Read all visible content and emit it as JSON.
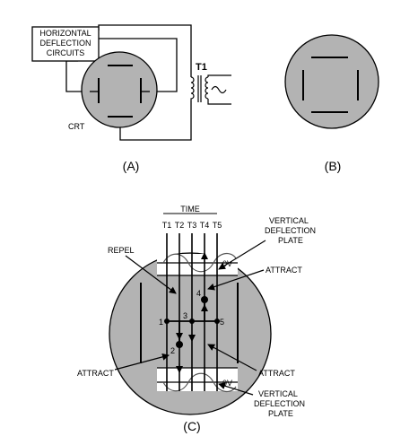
{
  "panel_a": {
    "box_line1": "HORIZONTAL",
    "box_line2": "DEFLECTION",
    "box_line3": "CIRCUITS",
    "transformer_label": "T1",
    "tube_label": "CRT",
    "caption": "(A)"
  },
  "panel_b": {
    "caption": "(B)"
  },
  "panel_c": {
    "time_label": "TIME",
    "time_marks": [
      "T1",
      "T2",
      "T3",
      "T4",
      "T5"
    ],
    "top_plate_line1": "VERTICAL",
    "top_plate_line2": "DEFLECTION",
    "top_plate_line3": "PLATE",
    "bottom_plate_line1": "VERTICAL",
    "bottom_plate_line2": "DEFLECTION",
    "bottom_plate_line3": "PLATE",
    "repel_label": "REPEL",
    "attract_top_label": "ATTRACT",
    "attract_left_label": "ATTRACT",
    "attract_right_label": "ATTRACT",
    "zero_top": "0V",
    "zero_bottom": "0V",
    "points": [
      "1",
      "2",
      "3",
      "4",
      "5"
    ],
    "caption": "(C)"
  },
  "colors": {
    "ink": "#000000",
    "screen": "#b3b3b3",
    "background": "#ffffff"
  }
}
